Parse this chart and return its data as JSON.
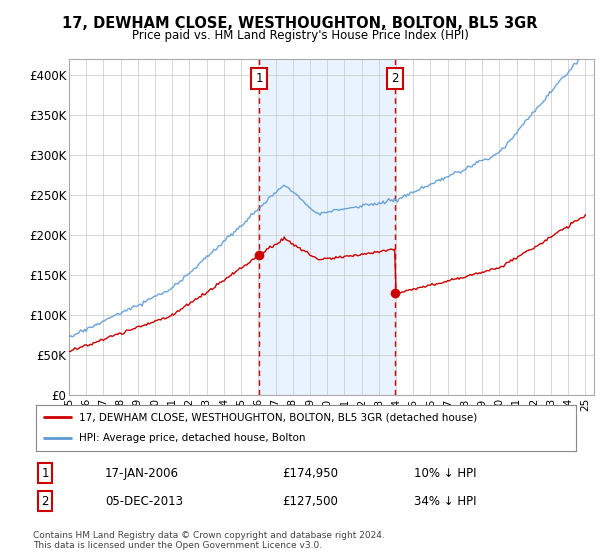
{
  "title": "17, DEWHAM CLOSE, WESTHOUGHTON, BOLTON, BL5 3GR",
  "subtitle": "Price paid vs. HM Land Registry's House Price Index (HPI)",
  "hpi_color": "#5b9bd5",
  "price_color": "#cc0000",
  "marker_color": "#cc0000",
  "annotation_box_color": "#cc0000",
  "vline_color": "#cc0000",
  "shade_color": "#dceeff",
  "background_color": "#ffffff",
  "plot_bg": "#ffffff",
  "ylabel_ticks": [
    "£0",
    "£50K",
    "£100K",
    "£150K",
    "£200K",
    "£250K",
    "£300K",
    "£350K",
    "£400K"
  ],
  "ytick_vals": [
    0,
    50000,
    100000,
    150000,
    200000,
    250000,
    300000,
    350000,
    400000
  ],
  "ylim": [
    0,
    420000
  ],
  "xlim_start": 1995.0,
  "xlim_end": 2025.5,
  "sale1_year": 2006.04,
  "sale1_price": 174950,
  "sale1_label": "1",
  "sale1_date": "17-JAN-2006",
  "sale1_pct": "10% ↓ HPI",
  "sale2_year": 2013.92,
  "sale2_price": 127500,
  "sale2_label": "2",
  "sale2_date": "05-DEC-2013",
  "sale2_pct": "34% ↓ HPI",
  "legend_line1": "17, DEWHAM CLOSE, WESTHOUGHTON, BOLTON, BL5 3GR (detached house)",
  "legend_line2": "HPI: Average price, detached house, Bolton",
  "footer": "Contains HM Land Registry data © Crown copyright and database right 2024.\nThis data is licensed under the Open Government Licence v3.0.",
  "xtick_years": [
    1995,
    1996,
    1997,
    1998,
    1999,
    2000,
    2001,
    2002,
    2003,
    2004,
    2005,
    2006,
    2007,
    2008,
    2009,
    2010,
    2011,
    2012,
    2013,
    2014,
    2015,
    2016,
    2017,
    2018,
    2019,
    2020,
    2021,
    2022,
    2023,
    2024,
    2025
  ]
}
